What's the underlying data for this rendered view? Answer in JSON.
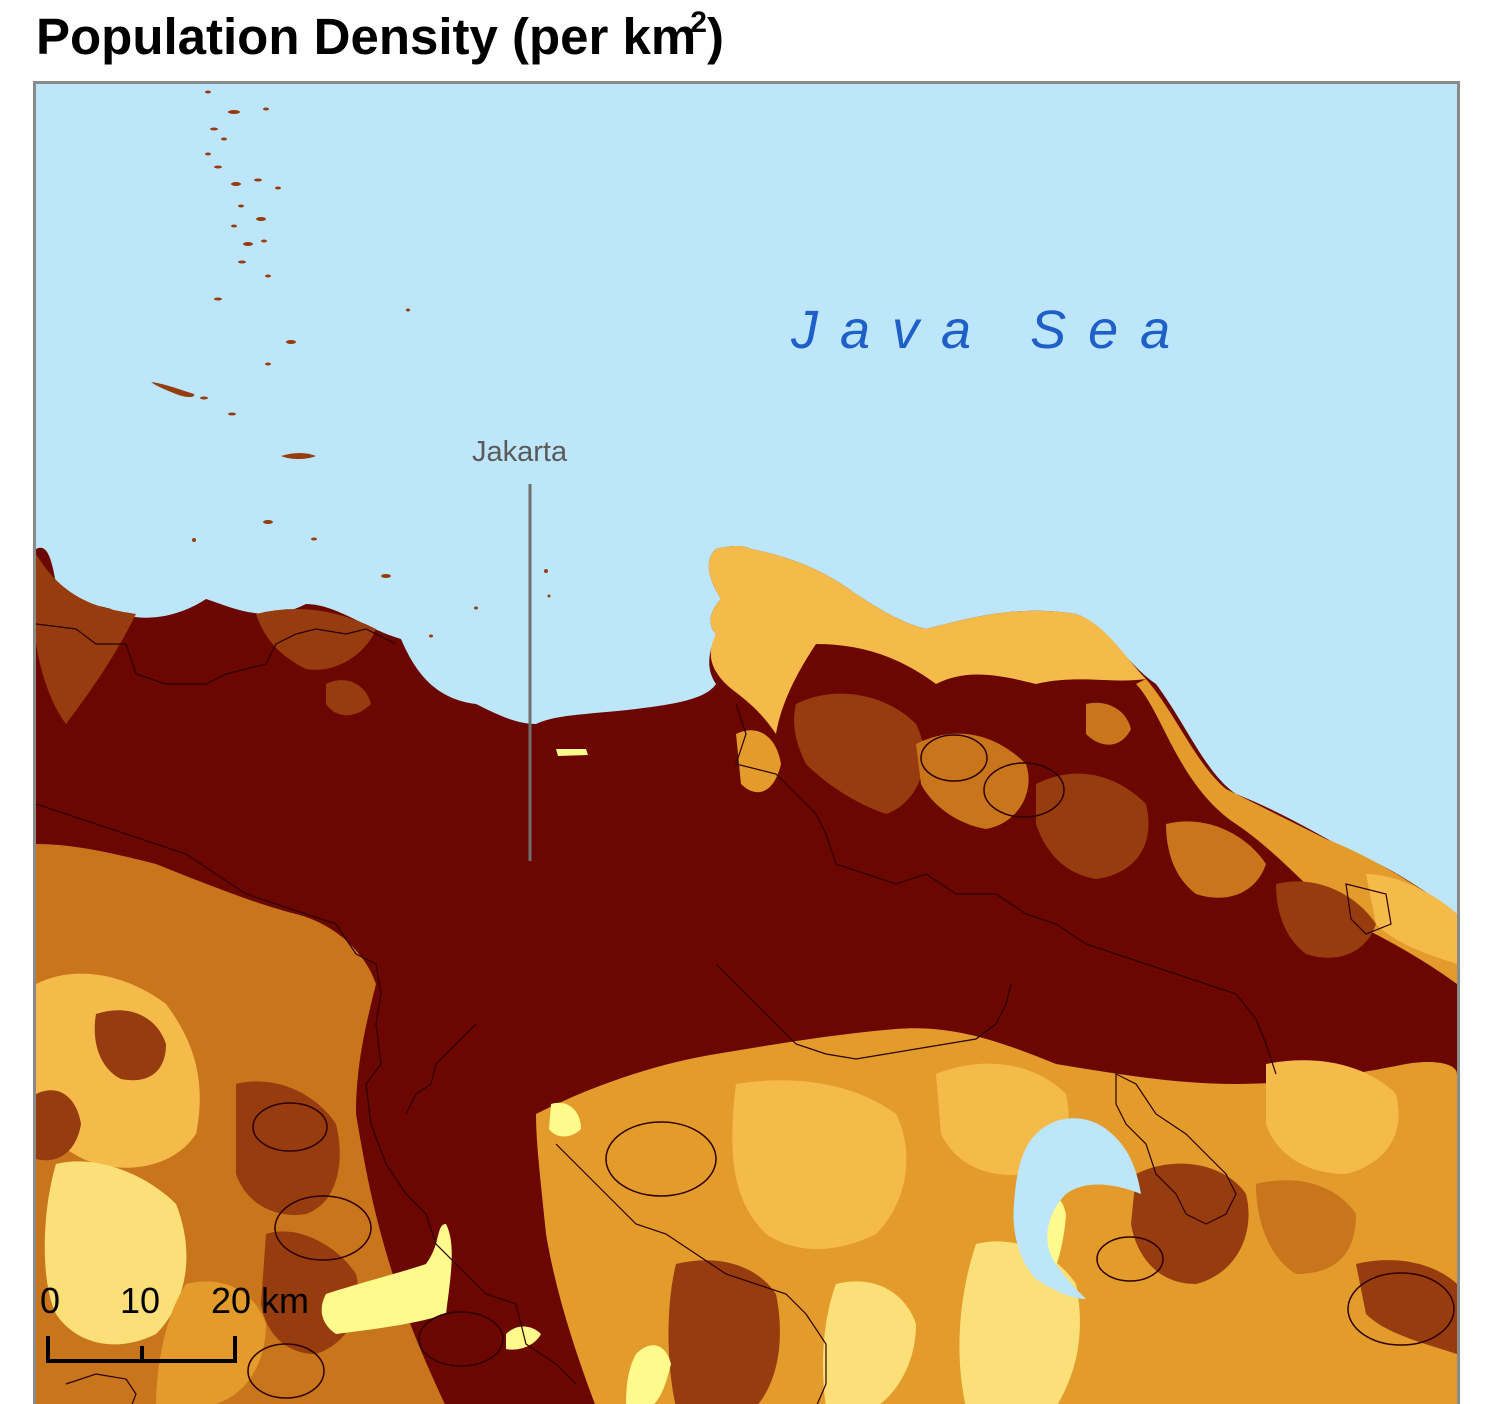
{
  "title": {
    "text": "Population Density (per km",
    "superscript": "2",
    "suffix": ")"
  },
  "map": {
    "sea_label": "Java Sea",
    "city_label": "Jakarta",
    "scale_bar": {
      "labels": [
        "0",
        "10",
        "20 km"
      ]
    },
    "colors": {
      "water": "#bee6fa",
      "highest": "#6b0700",
      "high": "#963c0e",
      "medium_high": "#c9751c",
      "medium": "#e39b2c",
      "medium_low": "#f5bb4a",
      "low": "#fbe079",
      "lowest": "#fffa8c"
    }
  }
}
